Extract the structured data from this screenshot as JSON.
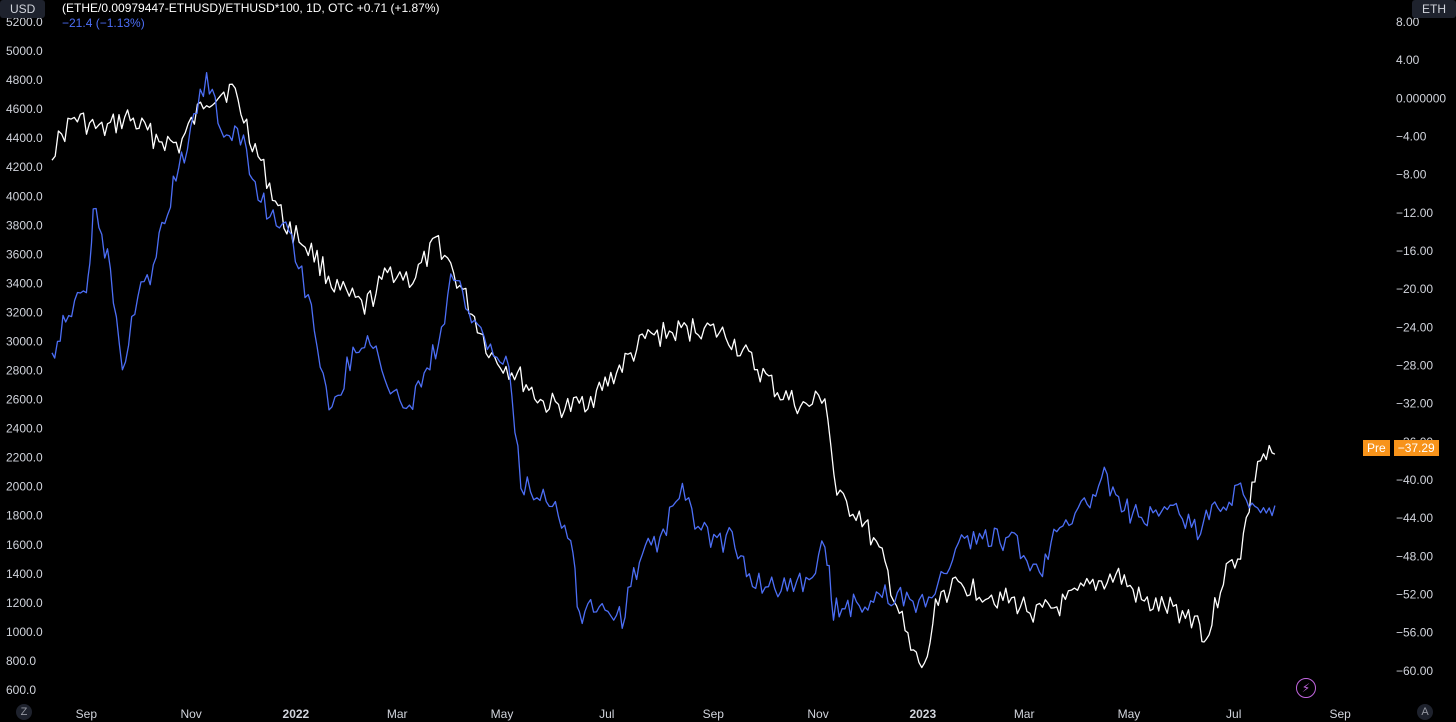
{
  "legend": {
    "main_title": "(ETHE/0.00979447-ETHUSD)/ETHUSD*100, 1D, OTC  +0.71 (+1.87%)",
    "secondary": "−21.4 (−1.13%)"
  },
  "left_axis_button": "USD",
  "right_axis_button": "ETH",
  "price_tag": {
    "label": "Pre",
    "value": "−37.29"
  },
  "buttons": {
    "zoom": "Z",
    "auto": "A",
    "bolt": "⚡"
  },
  "colors": {
    "background": "#000000",
    "premium_line": "#ffffff",
    "ethusd_line": "#4c6ef5",
    "tag": "#f7931a"
  },
  "chart_data": {
    "type": "line",
    "title": "(ETHE/0.00979447-ETHUSD)/ETHUSD*100, 1D, OTC",
    "x_tick_labels": [
      "Sep",
      "Nov",
      "2022",
      "Mar",
      "May",
      "Jul",
      "Sep",
      "Nov",
      "2023",
      "Mar",
      "May",
      "Jul",
      "Sep"
    ],
    "x_tick_bold": [
      false,
      false,
      true,
      false,
      false,
      false,
      false,
      false,
      true,
      false,
      false,
      false,
      false
    ],
    "left_axis": {
      "unit": "USD",
      "ylim": [
        600,
        5200
      ],
      "ticks": [
        600,
        800,
        1000,
        1200,
        1400,
        1600,
        1800,
        2000,
        2200,
        2400,
        2600,
        2800,
        3000,
        3200,
        3400,
        3600,
        3800,
        4000,
        4200,
        4400,
        4600,
        4800,
        5000,
        5200
      ]
    },
    "right_axis": {
      "unit": "ETH",
      "ylim": [
        -62,
        8
      ],
      "ticks": [
        "8.00",
        "4.00",
        "0.000000",
        "−4.00",
        "−8.00",
        "−12.00",
        "−16.00",
        "−20.00",
        "−24.00",
        "−28.00",
        "−32.00",
        "−36.00",
        "−40.00",
        "−44.00",
        "−48.00",
        "−52.00",
        "−56.00",
        "−60.00"
      ]
    },
    "x_range": [
      "2021-08-12",
      "2023-09-30"
    ],
    "series": [
      {
        "axis": "right",
        "color": "#ffffff",
        "points": [
          [
            "2021-08-12",
            -5.5
          ],
          [
            "2021-08-25",
            -2.0
          ],
          [
            "2021-09-10",
            -3.5
          ],
          [
            "2021-09-25",
            -2.0
          ],
          [
            "2021-10-10",
            -4.0
          ],
          [
            "2021-10-25",
            -5.0
          ],
          [
            "2021-11-10",
            0.0
          ],
          [
            "2021-11-25",
            1.0
          ],
          [
            "2021-12-10",
            -6.0
          ],
          [
            "2021-12-25",
            -13.0
          ],
          [
            "2022-01-10",
            -16.0
          ],
          [
            "2022-01-25",
            -20.0
          ],
          [
            "2022-02-10",
            -22.0
          ],
          [
            "2022-02-25",
            -18.0
          ],
          [
            "2022-03-10",
            -19.0
          ],
          [
            "2022-03-25",
            -15.0
          ],
          [
            "2022-04-10",
            -21.0
          ],
          [
            "2022-04-25",
            -27.0
          ],
          [
            "2022-05-10",
            -29.0
          ],
          [
            "2022-05-25",
            -32.0
          ],
          [
            "2022-06-10",
            -32.5
          ],
          [
            "2022-06-25",
            -31.0
          ],
          [
            "2022-07-10",
            -28.0
          ],
          [
            "2022-07-25",
            -25.0
          ],
          [
            "2022-08-10",
            -24.5
          ],
          [
            "2022-08-25",
            -24.0
          ],
          [
            "2022-09-10",
            -25.0
          ],
          [
            "2022-09-25",
            -28.0
          ],
          [
            "2022-10-10",
            -31.0
          ],
          [
            "2022-10-25",
            -32.5
          ],
          [
            "2022-11-05",
            -31.0
          ],
          [
            "2022-11-12",
            -42.0
          ],
          [
            "2022-11-25",
            -43.5
          ],
          [
            "2022-12-10",
            -49.0
          ],
          [
            "2022-12-25",
            -58.0
          ],
          [
            "2023-01-02",
            -60.0
          ],
          [
            "2023-01-10",
            -52.0
          ],
          [
            "2023-01-25",
            -51.0
          ],
          [
            "2023-02-10",
            -52.0
          ],
          [
            "2023-02-25",
            -53.0
          ],
          [
            "2023-03-10",
            -54.0
          ],
          [
            "2023-03-25",
            -53.0
          ],
          [
            "2023-04-10",
            -51.0
          ],
          [
            "2023-04-25",
            -50.0
          ],
          [
            "2023-05-10",
            -53.0
          ],
          [
            "2023-05-25",
            -53.5
          ],
          [
            "2023-06-10",
            -54.5
          ],
          [
            "2023-06-15",
            -57.0
          ],
          [
            "2023-06-25",
            -50.0
          ],
          [
            "2023-07-05",
            -47.5
          ],
          [
            "2023-07-15",
            -38.0
          ],
          [
            "2023-07-25",
            -37.29
          ]
        ]
      },
      {
        "axis": "left",
        "color": "#4c6ef5",
        "points": [
          [
            "2021-08-12",
            2900
          ],
          [
            "2021-08-20",
            3200
          ],
          [
            "2021-09-01",
            3300
          ],
          [
            "2021-09-05",
            3900
          ],
          [
            "2021-09-15",
            3500
          ],
          [
            "2021-09-22",
            2800
          ],
          [
            "2021-10-01",
            3300
          ],
          [
            "2021-10-10",
            3500
          ],
          [
            "2021-10-20",
            4000
          ],
          [
            "2021-10-28",
            4300
          ],
          [
            "2021-11-10",
            4800
          ],
          [
            "2021-11-20",
            4400
          ],
          [
            "2021-11-28",
            4500
          ],
          [
            "2021-12-05",
            4200
          ],
          [
            "2021-12-15",
            3900
          ],
          [
            "2021-12-28",
            3800
          ],
          [
            "2022-01-10",
            3200
          ],
          [
            "2022-01-22",
            2500
          ],
          [
            "2022-02-05",
            3000
          ],
          [
            "2022-02-15",
            3000
          ],
          [
            "2022-02-25",
            2600
          ],
          [
            "2022-03-10",
            2600
          ],
          [
            "2022-03-25",
            3000
          ],
          [
            "2022-04-03",
            3500
          ],
          [
            "2022-04-15",
            3100
          ],
          [
            "2022-04-28",
            2900
          ],
          [
            "2022-05-05",
            2800
          ],
          [
            "2022-05-12",
            2000
          ],
          [
            "2022-05-25",
            1950
          ],
          [
            "2022-06-10",
            1700
          ],
          [
            "2022-06-15",
            1100
          ],
          [
            "2022-06-25",
            1200
          ],
          [
            "2022-07-10",
            1100
          ],
          [
            "2022-07-20",
            1500
          ],
          [
            "2022-08-01",
            1650
          ],
          [
            "2022-08-14",
            1950
          ],
          [
            "2022-08-25",
            1700
          ],
          [
            "2022-09-05",
            1600
          ],
          [
            "2022-09-12",
            1700
          ],
          [
            "2022-09-22",
            1350
          ],
          [
            "2022-10-05",
            1300
          ],
          [
            "2022-10-25",
            1350
          ],
          [
            "2022-11-05",
            1600
          ],
          [
            "2022-11-10",
            1150
          ],
          [
            "2022-11-25",
            1200
          ],
          [
            "2022-12-10",
            1250
          ],
          [
            "2022-12-28",
            1200
          ],
          [
            "2023-01-10",
            1300
          ],
          [
            "2023-01-20",
            1600
          ],
          [
            "2023-02-10",
            1650
          ],
          [
            "2023-02-25",
            1600
          ],
          [
            "2023-03-10",
            1400
          ],
          [
            "2023-03-20",
            1750
          ],
          [
            "2023-04-05",
            1850
          ],
          [
            "2023-04-15",
            2100
          ],
          [
            "2023-04-25",
            1850
          ],
          [
            "2023-05-10",
            1800
          ],
          [
            "2023-05-25",
            1850
          ],
          [
            "2023-06-10",
            1700
          ],
          [
            "2023-06-20",
            1850
          ],
          [
            "2023-07-05",
            1950
          ],
          [
            "2023-07-15",
            1880
          ],
          [
            "2023-07-25",
            1870
          ]
        ]
      }
    ]
  }
}
